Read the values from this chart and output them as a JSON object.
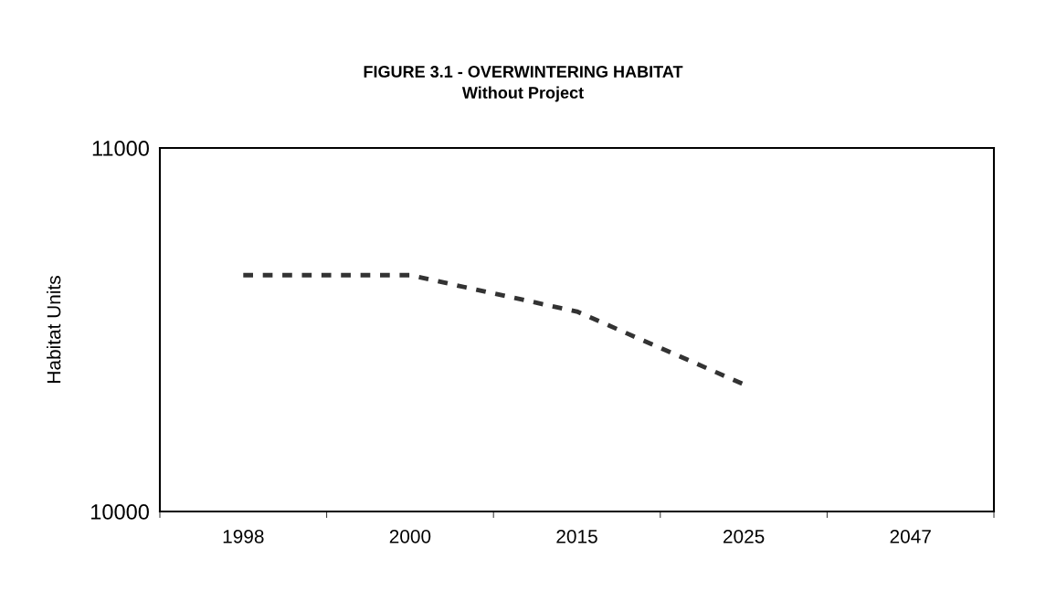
{
  "chart_data": {
    "type": "line",
    "title": "FIGURE 3.1 - OVERWINTERING HABITAT",
    "subtitle": "Without Project",
    "ylabel": "Habitat Units",
    "categories": [
      "1998",
      "2000",
      "2015",
      "2025",
      "2047"
    ],
    "series": [
      {
        "color": "#333333",
        "values": [
          10650,
          10650,
          10550,
          10350,
          null
        ]
      }
    ],
    "ylim": [
      10000,
      11000
    ],
    "yticks": [
      10000,
      11000
    ],
    "grid": false,
    "marker": "none",
    "line_style": "dashed"
  }
}
